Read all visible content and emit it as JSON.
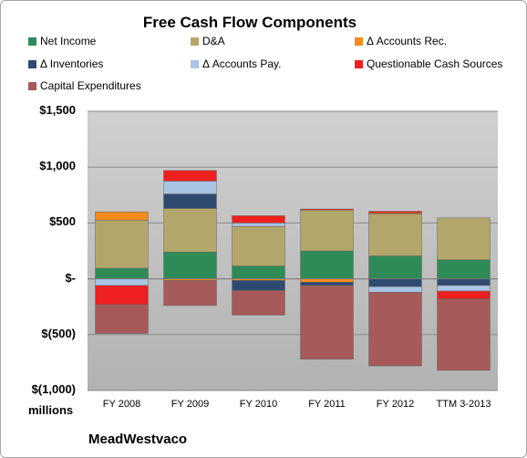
{
  "chart_data": {
    "type": "bar",
    "stacked": true,
    "title": "Free Cash Flow Components",
    "units_label": "millions",
    "company": "MeadWestvaco",
    "categories": [
      "FY 2008",
      "FY 2009",
      "FY 2010",
      "FY 2011",
      "FY 2012",
      "TTM 3-2013"
    ],
    "ylim": [
      -1000,
      1500
    ],
    "yticks": [
      {
        "value": 1500,
        "label": "$1,500"
      },
      {
        "value": 1000,
        "label": "$1,000"
      },
      {
        "value": 500,
        "label": "$500"
      },
      {
        "value": 0,
        "label": "$-"
      },
      {
        "value": -500,
        "label": "$(500)"
      },
      {
        "value": -1000,
        "label": "$(1,000)"
      }
    ],
    "grid": true,
    "legend_position": "top",
    "series": [
      {
        "name": "Net Income",
        "color": "#2e8b57",
        "values": [
          95,
          240,
          115,
          250,
          205,
          170
        ]
      },
      {
        "name": "D&A",
        "color": "#b3a66a",
        "values": [
          430,
          390,
          355,
          365,
          375,
          375
        ]
      },
      {
        "name": "Δ Accounts Rec.",
        "color": "#f28a1c",
        "values": [
          75,
          -15,
          -15,
          -30,
          10,
          0
        ]
      },
      {
        "name": "Δ Inventories",
        "color": "#2f4a70",
        "values": [
          0,
          130,
          -90,
          -30,
          -70,
          -60
        ]
      },
      {
        "name": "Δ Accounts Pay.",
        "color": "#a9c4e4",
        "values": [
          -60,
          115,
          30,
          0,
          -50,
          -50
        ]
      },
      {
        "name": "Questionable Cash Sources",
        "color": "#ee2020",
        "values": [
          -170,
          95,
          65,
          10,
          15,
          -70
        ]
      },
      {
        "name": "Capital Expenditures",
        "color": "#a65a5a",
        "values": [
          -260,
          -225,
          -220,
          -660,
          -660,
          -640
        ]
      }
    ]
  }
}
